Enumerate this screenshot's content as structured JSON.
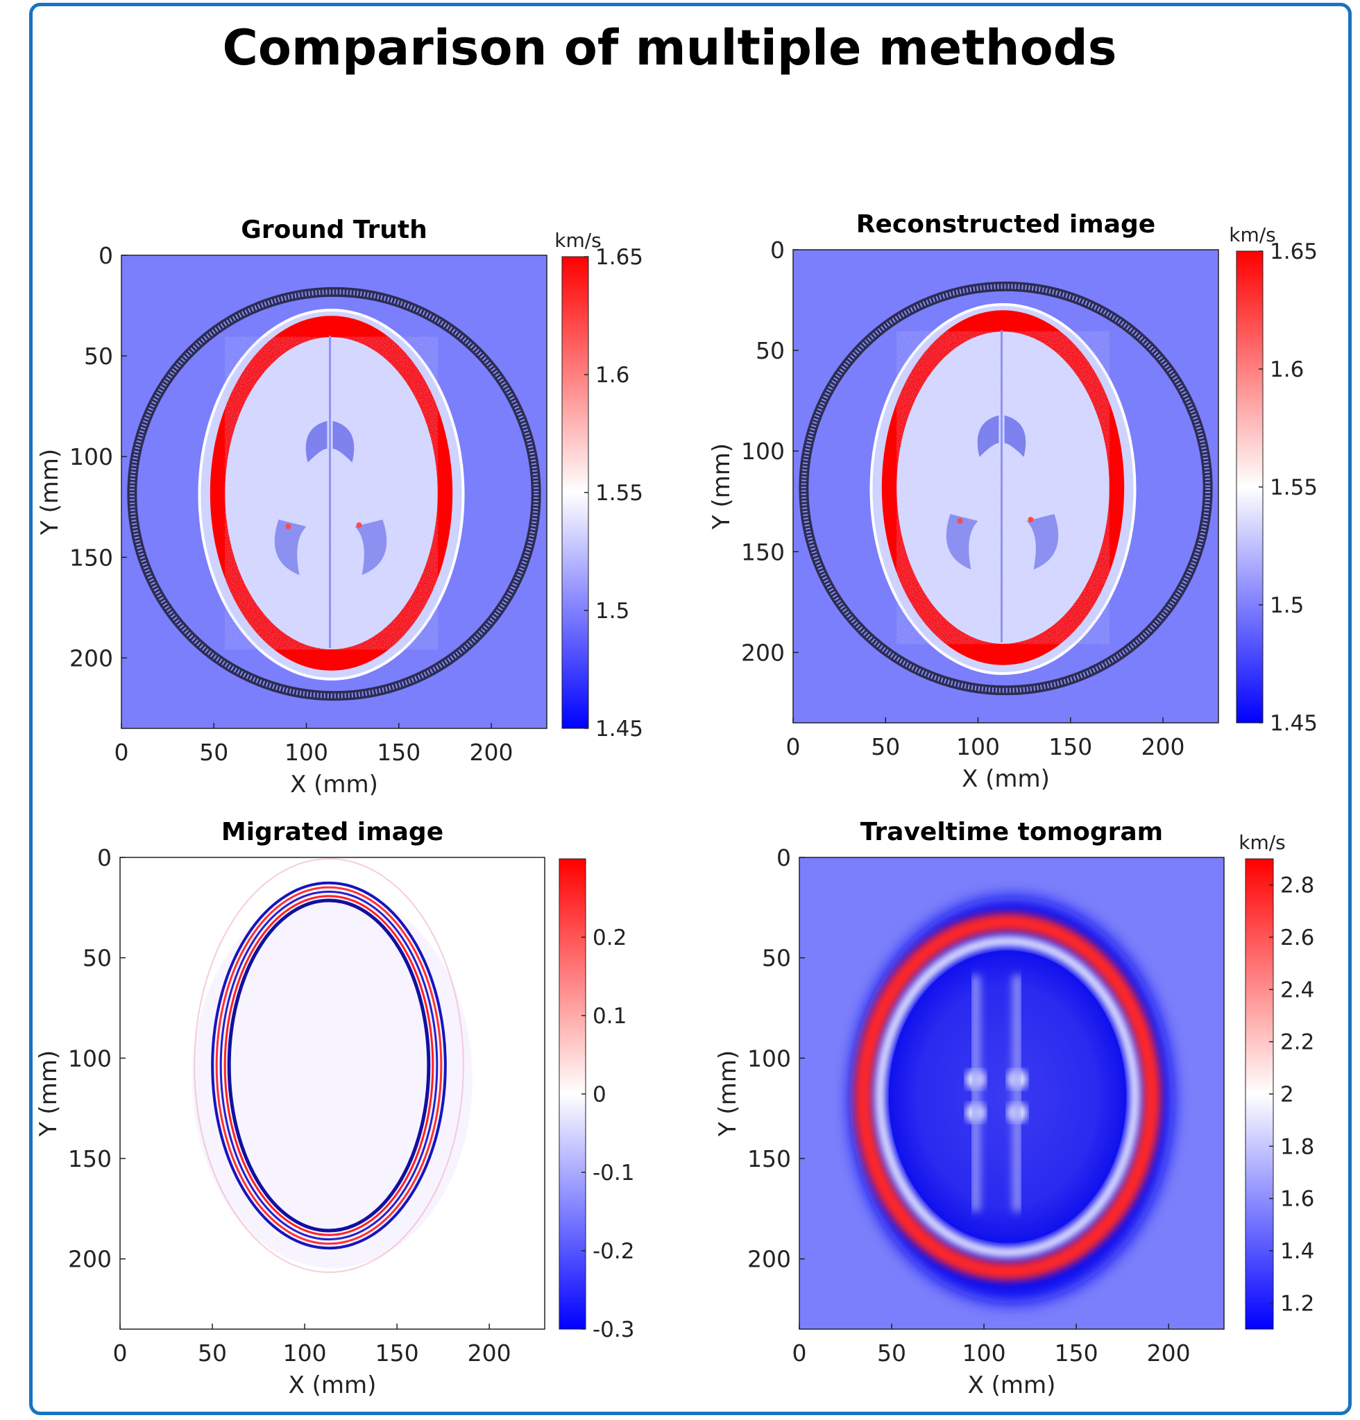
{
  "title": "Comparison of multiple methods",
  "chart_data": [
    {
      "type": "heatmap",
      "title": "Ground Truth",
      "xlabel": "X (mm)",
      "ylabel": "Y (mm)",
      "xlim": [
        0,
        230
      ],
      "ylim": [
        235,
        0
      ],
      "xticks": [
        0,
        50,
        100,
        150,
        200
      ],
      "yticks": [
        0,
        50,
        100,
        150,
        200
      ],
      "colorbar": {
        "unit": "km/s",
        "min": 1.45,
        "max": 1.65,
        "ticks": [
          "1.65",
          "1.6",
          "1.55",
          "1.5",
          "1.45"
        ]
      },
      "colormap": {
        "low": "#0000ff",
        "mid": "#ffffff",
        "high": "#ff0000"
      },
      "background_color": "#7b7ffb",
      "content": "brain-slice"
    },
    {
      "type": "heatmap",
      "title": "Reconstructed image",
      "xlabel": "X (mm)",
      "ylabel": "Y (mm)",
      "xlim": [
        0,
        230
      ],
      "ylim": [
        235,
        0
      ],
      "xticks": [
        0,
        50,
        100,
        150,
        200
      ],
      "yticks": [
        0,
        50,
        100,
        150,
        200
      ],
      "colorbar": {
        "unit": "km/s",
        "min": 1.45,
        "max": 1.65,
        "ticks": [
          "1.65",
          "1.6",
          "1.55",
          "1.5",
          "1.45"
        ]
      },
      "colormap": {
        "low": "#0000ff",
        "mid": "#ffffff",
        "high": "#ff0000"
      },
      "background_color": "#7b7ffb",
      "content": "brain-slice"
    },
    {
      "type": "heatmap",
      "title": "Migrated image",
      "xlabel": "X (mm)",
      "ylabel": "Y (mm)",
      "xlim": [
        0,
        230
      ],
      "ylim": [
        235,
        0
      ],
      "xticks": [
        0,
        50,
        100,
        150,
        200
      ],
      "yticks": [
        0,
        50,
        100,
        150,
        200
      ],
      "colorbar": {
        "unit": "",
        "min": -0.3,
        "max": 0.3,
        "ticks": [
          "0.2",
          "0.1",
          "0",
          "-0.1",
          "-0.2",
          "-0.3"
        ]
      },
      "colormap": {
        "low": "#0000ff",
        "mid": "#ffffff",
        "high": "#ff0000"
      },
      "background_color": "#ffffff",
      "content": "skull-edges"
    },
    {
      "type": "heatmap",
      "title": "Traveltime tomogram",
      "xlabel": "X (mm)",
      "ylabel": "Y (mm)",
      "xlim": [
        0,
        230
      ],
      "ylim": [
        235,
        0
      ],
      "xticks": [
        0,
        50,
        100,
        150,
        200
      ],
      "yticks": [
        0,
        50,
        100,
        150,
        200
      ],
      "colorbar": {
        "unit": "km/s",
        "min": 1.1,
        "max": 2.9,
        "ticks": [
          "2.8",
          "2.6",
          "2.4",
          "2.2",
          "2",
          "1.8",
          "1.6",
          "1.4",
          "1.2"
        ]
      },
      "colormap": {
        "low": "#0000ff",
        "mid": "#ffffff",
        "high": "#ff0000"
      },
      "background_color": "#7b7ffb",
      "content": "smooth-tomogram"
    }
  ]
}
